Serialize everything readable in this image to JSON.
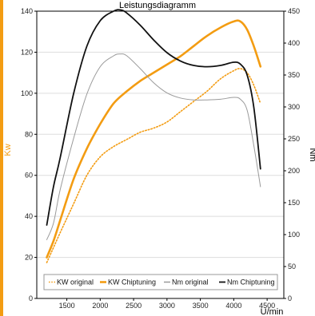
{
  "chart_data": {
    "type": "line",
    "title": "Leistungsdiagramm",
    "xlabel": "U/min",
    "ylabel_left": "Kw",
    "ylabel_right": "Nm",
    "x_ticks": [
      1500,
      2000,
      2500,
      3000,
      3500,
      4000,
      4500
    ],
    "y_left_ticks": [
      0,
      20,
      40,
      60,
      80,
      100,
      120,
      140
    ],
    "y_right_ticks": [
      0,
      50,
      100,
      150,
      200,
      250,
      300,
      350,
      400,
      450
    ],
    "xlim": [
      1050,
      4750
    ],
    "y_left_lim": [
      0,
      140
    ],
    "y_right_lim": [
      0,
      450
    ],
    "grid": true,
    "legend_position": "bottom",
    "colors": {
      "accent": "#f39c12",
      "kw_original": "#f39c12",
      "kw_chiptuning": "#f39c12",
      "nm_original": "#9a9a9a",
      "nm_chiptuning": "#111111"
    },
    "series": [
      {
        "name": "KW original",
        "axis": "left",
        "style": "dotted",
        "points": [
          [
            1200,
            17.5
          ],
          [
            1400,
            32
          ],
          [
            1600,
            46
          ],
          [
            1800,
            60
          ],
          [
            2000,
            69
          ],
          [
            2200,
            74
          ],
          [
            2400,
            77.5
          ],
          [
            2600,
            81
          ],
          [
            2800,
            83
          ],
          [
            3000,
            86
          ],
          [
            3200,
            91
          ],
          [
            3400,
            96
          ],
          [
            3600,
            101
          ],
          [
            3800,
            107
          ],
          [
            4000,
            111
          ],
          [
            4100,
            112
          ],
          [
            4200,
            110
          ],
          [
            4300,
            104
          ],
          [
            4400,
            95
          ]
        ]
      },
      {
        "name": "KW Chiptuning",
        "axis": "left",
        "style": "solid",
        "points": [
          [
            1200,
            20
          ],
          [
            1300,
            28
          ],
          [
            1400,
            38
          ],
          [
            1600,
            58
          ],
          [
            1800,
            73
          ],
          [
            2000,
            85
          ],
          [
            2200,
            95
          ],
          [
            2400,
            101
          ],
          [
            2600,
            106
          ],
          [
            2800,
            110
          ],
          [
            3000,
            114
          ],
          [
            3200,
            118
          ],
          [
            3400,
            123
          ],
          [
            3600,
            128
          ],
          [
            3800,
            132
          ],
          [
            4000,
            135
          ],
          [
            4100,
            135
          ],
          [
            4200,
            131
          ],
          [
            4300,
            123
          ],
          [
            4400,
            113
          ]
        ]
      },
      {
        "name": "Nm original",
        "axis": "right",
        "style": "solid",
        "points": [
          [
            1200,
            92
          ],
          [
            1300,
            118
          ],
          [
            1400,
            170
          ],
          [
            1600,
            250
          ],
          [
            1800,
            320
          ],
          [
            2000,
            363
          ],
          [
            2200,
            380
          ],
          [
            2300,
            383
          ],
          [
            2400,
            380
          ],
          [
            2600,
            360
          ],
          [
            2800,
            338
          ],
          [
            3000,
            322
          ],
          [
            3200,
            314
          ],
          [
            3400,
            311
          ],
          [
            3600,
            311
          ],
          [
            3800,
            312
          ],
          [
            4000,
            315
          ],
          [
            4100,
            312
          ],
          [
            4200,
            295
          ],
          [
            4300,
            240
          ],
          [
            4400,
            175
          ]
        ]
      },
      {
        "name": "Nm Chiptuning",
        "axis": "right",
        "style": "solid",
        "points": [
          [
            1200,
            115
          ],
          [
            1300,
            175
          ],
          [
            1400,
            220
          ],
          [
            1600,
            320
          ],
          [
            1800,
            395
          ],
          [
            2000,
            435
          ],
          [
            2200,
            450
          ],
          [
            2300,
            452
          ],
          [
            2400,
            447
          ],
          [
            2600,
            428
          ],
          [
            2800,
            405
          ],
          [
            3000,
            385
          ],
          [
            3200,
            372
          ],
          [
            3400,
            365
          ],
          [
            3600,
            363
          ],
          [
            3800,
            365
          ],
          [
            4000,
            370
          ],
          [
            4100,
            367
          ],
          [
            4200,
            350
          ],
          [
            4300,
            300
          ],
          [
            4400,
            203
          ]
        ]
      }
    ]
  }
}
